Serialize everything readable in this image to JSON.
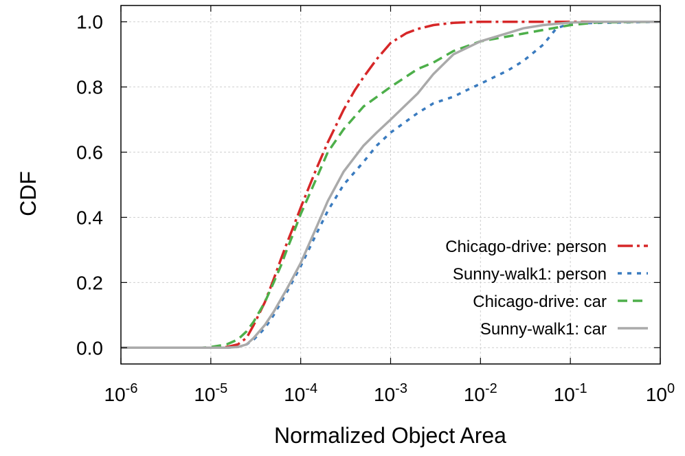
{
  "chart_data": {
    "type": "line",
    "xlabel": "Normalized Object Area",
    "ylabel": "CDF",
    "xscale": "log",
    "xlim": [
      1e-06,
      1
    ],
    "ylim": [
      -0.05,
      1.05
    ],
    "grid": true,
    "legend_position": "bottom-right",
    "x_ticks": [
      {
        "base": "10",
        "exp": "-6",
        "value": 1e-06
      },
      {
        "base": "10",
        "exp": "-5",
        "value": 1e-05
      },
      {
        "base": "10",
        "exp": "-4",
        "value": 0.0001
      },
      {
        "base": "10",
        "exp": "-3",
        "value": 0.001
      },
      {
        "base": "10",
        "exp": "-2",
        "value": 0.01
      },
      {
        "base": "10",
        "exp": "-1",
        "value": 0.1
      },
      {
        "base": "10",
        "exp": "0",
        "value": 1
      }
    ],
    "y_ticks": [
      {
        "label": "0.0",
        "value": 0.0
      },
      {
        "label": "0.2",
        "value": 0.2
      },
      {
        "label": "0.4",
        "value": 0.4
      },
      {
        "label": "0.6",
        "value": 0.6
      },
      {
        "label": "0.8",
        "value": 0.8
      },
      {
        "label": "1.0",
        "value": 1.0
      }
    ],
    "series": [
      {
        "name": "Chicago-drive: person",
        "color": "#d62728",
        "dash": "long-dash-dot",
        "x": [
          1e-06,
          1e-05,
          1.5e-05,
          2e-05,
          2.5e-05,
          3e-05,
          4e-05,
          5e-05,
          6e-05,
          7e-05,
          8e-05,
          0.0001,
          0.00015,
          0.0002,
          0.0003,
          0.0004,
          0.0005,
          0.0007,
          0.001,
          0.0015,
          0.002,
          0.003,
          0.005,
          0.01,
          0.03,
          1
        ],
        "y": [
          0,
          0,
          0.002,
          0.01,
          0.03,
          0.07,
          0.14,
          0.21,
          0.27,
          0.32,
          0.36,
          0.43,
          0.55,
          0.63,
          0.73,
          0.79,
          0.83,
          0.885,
          0.935,
          0.965,
          0.978,
          0.99,
          0.997,
          1.0,
          1.0,
          1.0
        ]
      },
      {
        "name": "Sunny-walk1: person",
        "color": "#3a7bbf",
        "dash": "short-dash",
        "x": [
          1e-06,
          1e-05,
          1.5e-05,
          2e-05,
          2.5e-05,
          3e-05,
          4e-05,
          5e-05,
          7e-05,
          0.0001,
          0.00015,
          0.0002,
          0.0003,
          0.0005,
          0.0007,
          0.001,
          0.002,
          0.003,
          0.005,
          0.007,
          0.01,
          0.02,
          0.03,
          0.05,
          0.07,
          0.1,
          1
        ],
        "y": [
          0,
          0,
          0,
          0.002,
          0.01,
          0.025,
          0.06,
          0.1,
          0.17,
          0.25,
          0.35,
          0.42,
          0.5,
          0.57,
          0.62,
          0.66,
          0.72,
          0.75,
          0.77,
          0.79,
          0.81,
          0.85,
          0.88,
          0.93,
          0.98,
          0.995,
          1.0
        ]
      },
      {
        "name": "Chicago-drive: car",
        "color": "#4daf4a",
        "dash": "medium-dash",
        "x": [
          1e-06,
          8e-06,
          1e-05,
          1.5e-05,
          2e-05,
          2.5e-05,
          3e-05,
          4e-05,
          5e-05,
          6e-05,
          7e-05,
          8e-05,
          0.0001,
          0.00015,
          0.0002,
          0.0003,
          0.0005,
          0.001,
          0.002,
          0.003,
          0.005,
          0.01,
          0.02,
          0.05,
          0.1,
          0.2,
          1
        ],
        "y": [
          0,
          0,
          0.002,
          0.01,
          0.025,
          0.05,
          0.08,
          0.14,
          0.2,
          0.25,
          0.3,
          0.34,
          0.41,
          0.52,
          0.6,
          0.67,
          0.74,
          0.8,
          0.855,
          0.875,
          0.91,
          0.94,
          0.955,
          0.975,
          0.99,
          0.998,
          1.0
        ]
      },
      {
        "name": "Sunny-walk1: car",
        "color": "#aaaaaa",
        "dash": "solid",
        "x": [
          1e-06,
          1e-05,
          1.5e-05,
          2e-05,
          2.5e-05,
          3e-05,
          4e-05,
          5e-05,
          7e-05,
          0.0001,
          0.00015,
          0.0002,
          0.0003,
          0.0005,
          0.0007,
          0.001,
          0.002,
          0.003,
          0.005,
          0.01,
          0.02,
          0.03,
          0.05,
          0.1,
          0.2,
          1
        ],
        "y": [
          0,
          0,
          0,
          0.002,
          0.01,
          0.03,
          0.07,
          0.11,
          0.18,
          0.26,
          0.37,
          0.45,
          0.54,
          0.62,
          0.66,
          0.7,
          0.78,
          0.84,
          0.9,
          0.94,
          0.965,
          0.98,
          0.99,
          0.998,
          1.0,
          1.0
        ]
      }
    ]
  }
}
